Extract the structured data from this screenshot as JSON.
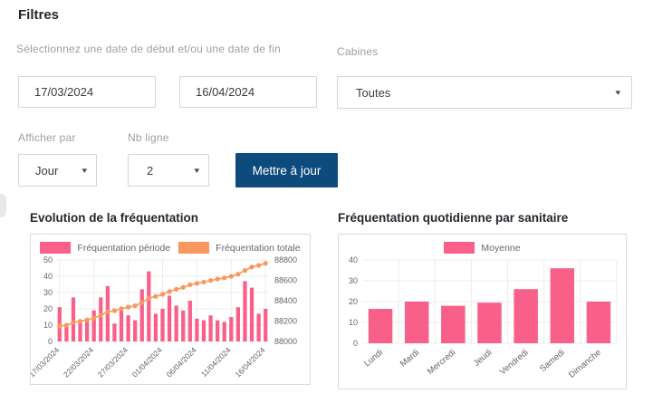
{
  "page": {
    "filters_heading": "Filtres"
  },
  "filters": {
    "date_label": "Sélectionnez une date de début et/ou une date de fin",
    "date_start": "17/03/2024",
    "date_end": "16/04/2024",
    "cabines_label": "Cabines",
    "cabines_value": "Toutes",
    "afficher_label": "Afficher par",
    "afficher_value": "Jour",
    "nb_ligne_label": "Nb ligne",
    "nb_ligne_value": "2",
    "update_button": "Mettre à jour",
    "chevron_glyph": "▾"
  },
  "colors": {
    "pink": "#F8608A",
    "orange": "#F9975D",
    "button_blue": "#0E4B7D",
    "grid": "#ececec",
    "tick_text": "#63646c"
  },
  "charts": {
    "evolution_title": "Evolution de la fréquentation",
    "quotidienne_title": "Fréquentation quotidienne par sanitaire"
  },
  "chart_data": [
    {
      "id": "evolution",
      "type": "bar+line dual-axis",
      "title": "Evolution de la fréquentation",
      "legend_position": "top",
      "grid": true,
      "x": [
        "17/03/2024",
        "18/03/2024",
        "19/03/2024",
        "20/03/2024",
        "21/03/2024",
        "22/03/2024",
        "23/03/2024",
        "24/03/2024",
        "25/03/2024",
        "26/03/2024",
        "27/03/2024",
        "28/03/2024",
        "29/03/2024",
        "30/03/2024",
        "31/03/2024",
        "01/04/2024",
        "02/04/2024",
        "03/04/2024",
        "04/04/2024",
        "05/04/2024",
        "06/04/2024",
        "07/04/2024",
        "08/04/2024",
        "09/04/2024",
        "10/04/2024",
        "11/04/2024",
        "12/04/2024",
        "13/04/2024",
        "14/04/2024",
        "15/04/2024",
        "16/04/2024"
      ],
      "x_tick_every": 5,
      "x_ticks_shown": [
        "17/03/2024",
        "22/03/2024",
        "27/03/2024",
        "01/04/2024",
        "06/04/2024",
        "11/04/2024",
        "16/04/2024"
      ],
      "y_left": {
        "min": 0,
        "max": 50,
        "ticks": [
          0,
          10,
          20,
          30,
          40,
          50
        ]
      },
      "y_right": {
        "min": 88000,
        "max": 88800,
        "ticks": [
          88000,
          88200,
          88400,
          88600,
          88800
        ]
      },
      "series": [
        {
          "name": "Fréquentation période",
          "type": "bar",
          "axis": "left",
          "color": "#F8608A",
          "values": [
            21,
            9,
            27,
            12,
            13,
            19,
            27,
            34,
            11,
            19,
            16,
            13,
            32,
            43,
            17,
            20,
            28,
            22,
            19,
            25,
            14,
            13,
            16,
            13,
            12,
            15,
            21,
            37,
            33,
            17,
            20
          ]
        },
        {
          "name": "Fréquentation totale",
          "type": "line",
          "axis": "right",
          "color": "#F9975D",
          "values": [
            88150,
            88159,
            88186,
            88198,
            88211,
            88230,
            88257,
            88291,
            88302,
            88321,
            88337,
            88350,
            88382,
            88425,
            88442,
            88462,
            88490,
            88512,
            88531,
            88556,
            88570,
            88583,
            88599,
            88612,
            88624,
            88639,
            88660,
            88697,
            88730,
            88747,
            88767
          ]
        }
      ]
    },
    {
      "id": "quotidienne",
      "type": "bar",
      "title": "Fréquentation quotidienne par sanitaire",
      "legend": [
        "Moyenne"
      ],
      "legend_position": "top",
      "grid": true,
      "color": "#F8608A",
      "categories": [
        "Lundi",
        "Mardi",
        "Mercredi",
        "Jeudi",
        "Vendredi",
        "Samedi",
        "Dimanche"
      ],
      "values": [
        16.5,
        20,
        18,
        19.5,
        26,
        36,
        20
      ],
      "ylim": [
        0,
        40
      ],
      "yticks": [
        0,
        10,
        20,
        30,
        40
      ]
    }
  ]
}
